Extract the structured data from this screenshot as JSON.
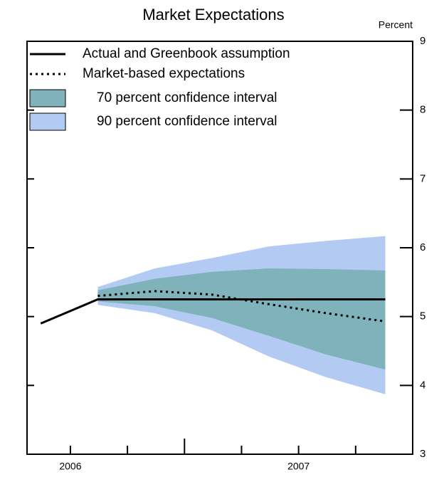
{
  "chart_data": {
    "type": "line",
    "title": "Market Expectations",
    "y_label": "Percent",
    "x": [
      2006.37,
      2006.62,
      2006.87,
      2007.12,
      2007.37,
      2007.62,
      2007.88
    ],
    "series": [
      {
        "name": "Actual and Greenbook assumption",
        "style": "solid",
        "color": "#000000",
        "values": [
          4.9,
          5.25,
          5.25,
          5.25,
          5.25,
          5.25,
          5.25
        ]
      },
      {
        "name": "Market-based expectations",
        "style": "dotted",
        "color": "#000000",
        "values": [
          null,
          5.3,
          5.37,
          5.32,
          5.18,
          5.05,
          4.93
        ]
      },
      {
        "name": "70 percent confidence interval",
        "style": "band",
        "color": "#7fb2ba",
        "lower": [
          null,
          5.22,
          5.15,
          4.98,
          4.72,
          4.45,
          4.23
        ],
        "upper": [
          null,
          5.38,
          5.55,
          5.65,
          5.7,
          5.69,
          5.67
        ]
      },
      {
        "name": "90 percent confidence interval",
        "style": "band",
        "color": "#b3cbf2",
        "lower": [
          null,
          5.17,
          5.05,
          4.8,
          4.42,
          4.12,
          3.87
        ],
        "upper": [
          null,
          5.43,
          5.7,
          5.85,
          6.02,
          6.1,
          6.17
        ]
      }
    ],
    "xlim": [
      2006.31,
      2008.0
    ],
    "xticks": [
      {
        "value": 2006.5,
        "label": "2006"
      },
      {
        "value": 2007.5,
        "label": "2007"
      }
    ],
    "x_minor_ticks": [
      2006.5,
      2006.75,
      2007.25,
      2007.5,
      2007.75
    ],
    "x_major_ticks": [
      2007.0
    ],
    "ylim": [
      3,
      9
    ],
    "yticks": [
      3,
      4,
      5,
      6,
      7,
      8,
      9
    ],
    "grid": false
  }
}
